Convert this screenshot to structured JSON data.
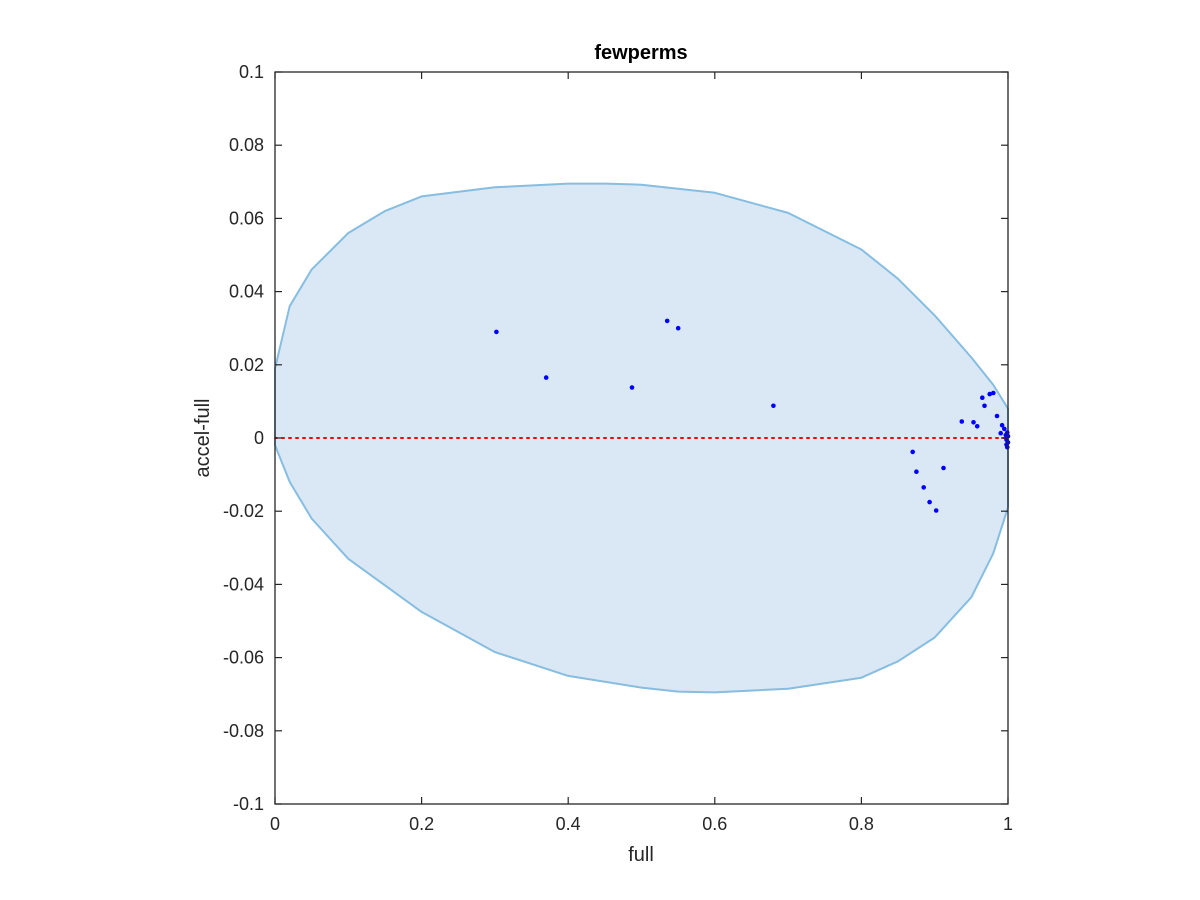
{
  "chart_data": {
    "type": "scatter",
    "title": "fewperms",
    "xlabel": "full",
    "ylabel": "accel-full",
    "xlim": [
      0,
      1
    ],
    "ylim": [
      -0.1,
      0.1
    ],
    "xticks": [
      "0",
      "0.2",
      "0.4",
      "0.6",
      "0.8",
      "1"
    ],
    "xtick_values": [
      0,
      0.2,
      0.4,
      0.6,
      0.8,
      1
    ],
    "yticks": [
      "0.1",
      "0.08",
      "0.06",
      "0.04",
      "0.02",
      "0",
      "-0.02",
      "-0.04",
      "-0.06",
      "-0.08",
      "-0.1"
    ],
    "ytick_values": [
      0.1,
      0.08,
      0.06,
      0.04,
      0.02,
      0,
      -0.02,
      -0.04,
      -0.06,
      -0.08,
      -0.1
    ],
    "grid": false,
    "reference_line": {
      "y": 0,
      "style": "dotted",
      "color": "#ff0000"
    },
    "region": {
      "shape": "closed-curve",
      "fill": "#d9e8f4",
      "stroke": "#86bde0",
      "boundary": [
        [
          0.0,
          0.019
        ],
        [
          0.02,
          0.036
        ],
        [
          0.05,
          0.046
        ],
        [
          0.1,
          0.056
        ],
        [
          0.15,
          0.062
        ],
        [
          0.2,
          0.066
        ],
        [
          0.3,
          0.0685
        ],
        [
          0.4,
          0.0695
        ],
        [
          0.45,
          0.0695
        ],
        [
          0.5,
          0.0692
        ],
        [
          0.6,
          0.067
        ],
        [
          0.7,
          0.0615
        ],
        [
          0.8,
          0.0515
        ],
        [
          0.85,
          0.0435
        ],
        [
          0.9,
          0.0335
        ],
        [
          0.95,
          0.022
        ],
        [
          0.98,
          0.0145
        ],
        [
          1.0,
          0.008
        ],
        [
          1.0,
          -0.019
        ],
        [
          0.98,
          -0.0315
        ],
        [
          0.95,
          -0.0435
        ],
        [
          0.9,
          -0.0545
        ],
        [
          0.85,
          -0.061
        ],
        [
          0.8,
          -0.0655
        ],
        [
          0.7,
          -0.0685
        ],
        [
          0.6,
          -0.0695
        ],
        [
          0.55,
          -0.0693
        ],
        [
          0.5,
          -0.0682
        ],
        [
          0.4,
          -0.065
        ],
        [
          0.3,
          -0.0585
        ],
        [
          0.2,
          -0.0475
        ],
        [
          0.1,
          -0.033
        ],
        [
          0.05,
          -0.022
        ],
        [
          0.02,
          -0.012
        ],
        [
          0.0,
          -0.002
        ]
      ]
    },
    "series": [
      {
        "color": "#0000ff",
        "points": [
          [
            0.302,
            0.029
          ],
          [
            0.37,
            0.0165
          ],
          [
            0.487,
            0.0138
          ],
          [
            0.535,
            0.032
          ],
          [
            0.55,
            0.03
          ],
          [
            0.68,
            0.0088
          ],
          [
            0.87,
            -0.0038
          ],
          [
            0.875,
            -0.0092
          ],
          [
            0.885,
            -0.0135
          ],
          [
            0.893,
            -0.0175
          ],
          [
            0.902,
            -0.0198
          ],
          [
            0.912,
            -0.0082
          ],
          [
            0.937,
            0.0045
          ],
          [
            0.953,
            0.0043
          ],
          [
            0.958,
            0.0032
          ],
          [
            0.965,
            0.011
          ],
          [
            0.968,
            0.0088
          ],
          [
            0.975,
            0.012
          ],
          [
            0.98,
            0.0123
          ],
          [
            0.985,
            0.006
          ],
          [
            0.99,
            0.0013
          ],
          [
            0.992,
            0.0035
          ],
          [
            0.995,
            0.0025
          ],
          [
            0.997,
            0.0008
          ],
          [
            0.998,
            -0.0005
          ],
          [
            0.998,
            -0.0018
          ],
          [
            0.999,
            -0.0025
          ],
          [
            0.999,
            0.0015
          ],
          [
            1.0,
            0.0005
          ],
          [
            1.0,
            -0.0012
          ]
        ]
      }
    ]
  }
}
